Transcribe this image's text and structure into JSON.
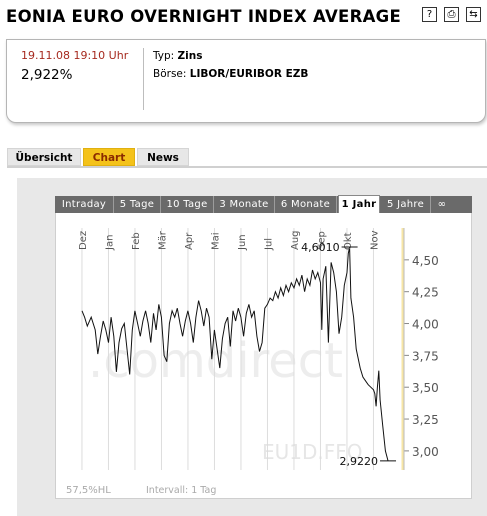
{
  "header": {
    "title": "EONIA EURO OVERNIGHT INDEX AVERAGE",
    "icons": [
      "help-icon",
      "print-icon",
      "back-icon"
    ],
    "icon_glyphs": [
      "?",
      "⎙",
      "⇆"
    ]
  },
  "info": {
    "datetime": "19.11.08 19:10 Uhr",
    "price": "2,922%",
    "typ_label": "Typ:",
    "typ_value": "Zins",
    "boerse_label": "Börse:",
    "boerse_value": "LIBOR/EURIBOR EZB"
  },
  "tabs": [
    {
      "label": "Übersicht",
      "active": false
    },
    {
      "label": "Chart",
      "active": true
    },
    {
      "label": "News",
      "active": false
    }
  ],
  "period_tabs": [
    {
      "label": "Intraday",
      "active": false
    },
    {
      "label": "5 Tage",
      "active": false
    },
    {
      "label": "10 Tage",
      "active": false
    },
    {
      "label": "3 Monate",
      "active": false
    },
    {
      "label": "6 Monate",
      "active": false
    },
    {
      "label": "1 Jahr",
      "active": true
    },
    {
      "label": "5 Jahre",
      "active": false
    },
    {
      "label": "∞",
      "active": false
    }
  ],
  "chart_data": {
    "type": "line",
    "months": [
      "Dez",
      "Jan",
      "Feb",
      "Mär",
      "Apr",
      "Mai",
      "Jun",
      "Jul",
      "Aug",
      "Sep",
      "Okt",
      "Nov"
    ],
    "y_ticks": [
      "4,50",
      "4,25",
      "4,00",
      "3,75",
      "3,50",
      "3,25",
      "3,00"
    ],
    "ylim": [
      2.85,
      4.75
    ],
    "y_tick_values": [
      4.5,
      4.25,
      4.0,
      3.75,
      3.5,
      3.25,
      3.0
    ],
    "annotations": [
      {
        "label": "4,6010",
        "x_month": 10.1,
        "y": 4.601
      },
      {
        "label": "2,9220",
        "x_month": 11.55,
        "y": 2.922
      }
    ],
    "watermark": ".comdirect",
    "symbol_watermark": "EU1D.FFO",
    "footer_left": "57,5%HL",
    "footer_right": "Intervall: 1 Tag",
    "series": [
      {
        "values": [
          [
            0.0,
            4.1
          ],
          [
            0.1,
            4.05
          ],
          [
            0.2,
            3.98
          ],
          [
            0.35,
            4.05
          ],
          [
            0.5,
            3.95
          ],
          [
            0.6,
            3.76
          ],
          [
            0.7,
            3.9
          ],
          [
            0.8,
            4.02
          ],
          [
            0.9,
            3.95
          ],
          [
            1.0,
            3.85
          ],
          [
            1.1,
            4.05
          ],
          [
            1.2,
            3.9
          ],
          [
            1.3,
            3.62
          ],
          [
            1.4,
            3.85
          ],
          [
            1.5,
            3.96
          ],
          [
            1.6,
            4.0
          ],
          [
            1.7,
            3.8
          ],
          [
            1.8,
            3.6
          ],
          [
            1.9,
            3.95
          ],
          [
            2.0,
            4.1
          ],
          [
            2.1,
            4.0
          ],
          [
            2.2,
            3.9
          ],
          [
            2.3,
            4.02
          ],
          [
            2.4,
            4.1
          ],
          [
            2.5,
            4.0
          ],
          [
            2.6,
            3.85
          ],
          [
            2.7,
            4.08
          ],
          [
            2.8,
            3.95
          ],
          [
            2.9,
            4.15
          ],
          [
            3.0,
            4.05
          ],
          [
            3.1,
            3.75
          ],
          [
            3.2,
            3.7
          ],
          [
            3.3,
            4.0
          ],
          [
            3.4,
            4.1
          ],
          [
            3.5,
            4.05
          ],
          [
            3.6,
            4.12
          ],
          [
            3.7,
            4.0
          ],
          [
            3.8,
            3.9
          ],
          [
            3.9,
            4.02
          ],
          [
            4.0,
            4.1
          ],
          [
            4.1,
            4.0
          ],
          [
            4.2,
            3.85
          ],
          [
            4.3,
            4.05
          ],
          [
            4.4,
            4.18
          ],
          [
            4.5,
            4.1
          ],
          [
            4.6,
            3.98
          ],
          [
            4.7,
            4.12
          ],
          [
            4.8,
            4.05
          ],
          [
            4.9,
            3.72
          ],
          [
            5.0,
            3.95
          ],
          [
            5.1,
            3.8
          ],
          [
            5.2,
            3.65
          ],
          [
            5.3,
            3.88
          ],
          [
            5.4,
            4.0
          ],
          [
            5.5,
            4.05
          ],
          [
            5.6,
            3.82
          ],
          [
            5.7,
            4.1
          ],
          [
            5.8,
            4.02
          ],
          [
            5.9,
            4.12
          ],
          [
            6.0,
            4.05
          ],
          [
            6.1,
            3.9
          ],
          [
            6.2,
            4.08
          ],
          [
            6.3,
            4.15
          ],
          [
            6.4,
            4.05
          ],
          [
            6.5,
            4.1
          ],
          [
            6.6,
            3.9
          ],
          [
            6.7,
            3.78
          ],
          [
            6.8,
            3.85
          ],
          [
            6.9,
            4.12
          ],
          [
            7.0,
            4.15
          ],
          [
            7.1,
            4.2
          ],
          [
            7.2,
            4.18
          ],
          [
            7.3,
            4.25
          ],
          [
            7.4,
            4.2
          ],
          [
            7.5,
            4.28
          ],
          [
            7.6,
            4.22
          ],
          [
            7.7,
            4.3
          ],
          [
            7.8,
            4.25
          ],
          [
            7.9,
            4.32
          ],
          [
            8.0,
            4.28
          ],
          [
            8.1,
            4.35
          ],
          [
            8.2,
            4.3
          ],
          [
            8.3,
            4.38
          ],
          [
            8.4,
            4.25
          ],
          [
            8.5,
            4.35
          ],
          [
            8.6,
            4.3
          ],
          [
            8.7,
            4.42
          ],
          [
            8.8,
            4.35
          ],
          [
            8.9,
            4.4
          ],
          [
            9.0,
            4.32
          ],
          [
            9.05,
            3.95
          ],
          [
            9.1,
            4.35
          ],
          [
            9.2,
            4.45
          ],
          [
            9.3,
            3.85
          ],
          [
            9.4,
            4.48
          ],
          [
            9.5,
            4.4
          ],
          [
            9.6,
            4.25
          ],
          [
            9.7,
            3.92
          ],
          [
            9.8,
            4.05
          ],
          [
            9.9,
            4.3
          ],
          [
            10.0,
            4.4
          ],
          [
            10.05,
            4.55
          ],
          [
            10.1,
            4.601
          ],
          [
            10.15,
            4.2
          ],
          [
            10.25,
            4.05
          ],
          [
            10.35,
            3.8
          ],
          [
            10.5,
            3.65
          ],
          [
            10.6,
            3.58
          ],
          [
            10.7,
            3.55
          ],
          [
            10.8,
            3.52
          ],
          [
            10.9,
            3.5
          ],
          [
            11.0,
            3.48
          ],
          [
            11.05,
            3.45
          ],
          [
            11.1,
            3.35
          ],
          [
            11.15,
            3.5
          ],
          [
            11.2,
            3.63
          ],
          [
            11.25,
            3.4
          ],
          [
            11.35,
            3.2
          ],
          [
            11.45,
            3.0
          ],
          [
            11.55,
            2.922
          ]
        ]
      }
    ]
  }
}
